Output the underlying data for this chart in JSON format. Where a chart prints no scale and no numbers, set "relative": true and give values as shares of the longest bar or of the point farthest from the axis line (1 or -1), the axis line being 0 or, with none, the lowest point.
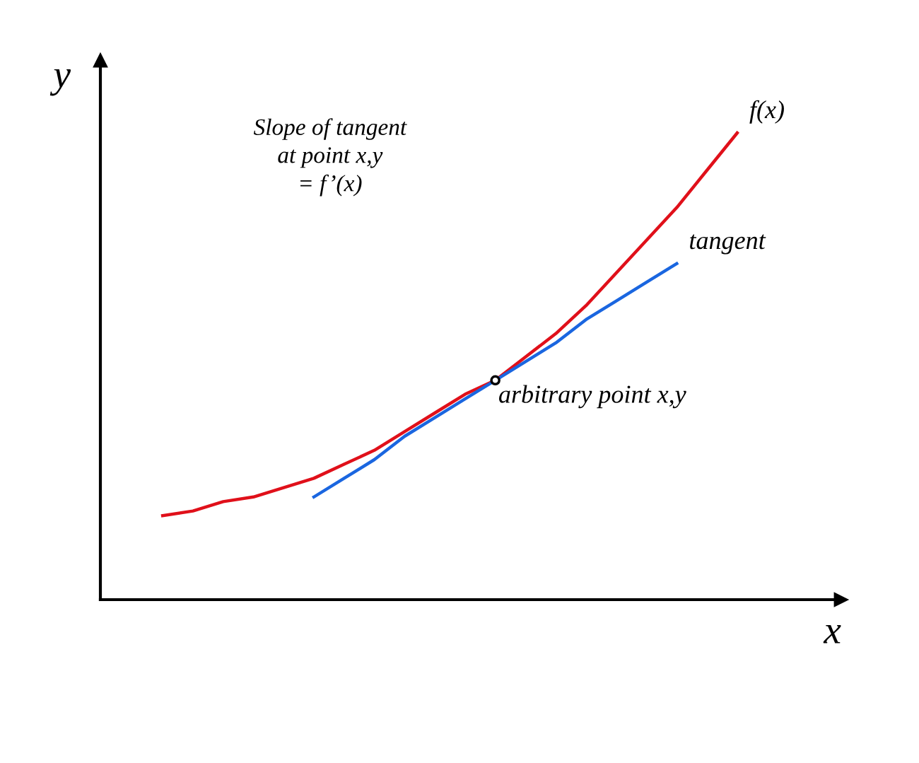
{
  "chart_data": {
    "type": "line",
    "relative": true,
    "xlabel": "x",
    "ylabel": "y",
    "categories": [
      null,
      null,
      null,
      null,
      null,
      null,
      null,
      null,
      null,
      null,
      null,
      null,
      null,
      null,
      null,
      null,
      null,
      null,
      null,
      null
    ],
    "series": [
      {
        "name": "f(x)",
        "color": "#e0101a",
        "values": [
          0.18,
          0.19,
          0.21,
          0.22,
          0.24,
          0.26,
          0.29,
          0.32,
          0.36,
          0.4,
          0.44,
          0.47,
          0.52,
          0.57,
          0.63,
          0.7,
          0.77,
          0.84,
          0.92,
          1.0
        ]
      },
      {
        "name": "tangent",
        "color": "#1a66e0",
        "values": [
          null,
          null,
          null,
          null,
          null,
          0.22,
          0.26,
          0.3,
          0.35,
          0.39,
          0.43,
          0.47,
          0.51,
          0.55,
          0.6,
          0.64,
          0.68,
          0.72,
          null,
          null
        ]
      }
    ],
    "annotations": [
      "Slope of tangent\nat point x,y\n= f’(x)",
      "arbitrary point x,y"
    ],
    "legend": false
  }
}
